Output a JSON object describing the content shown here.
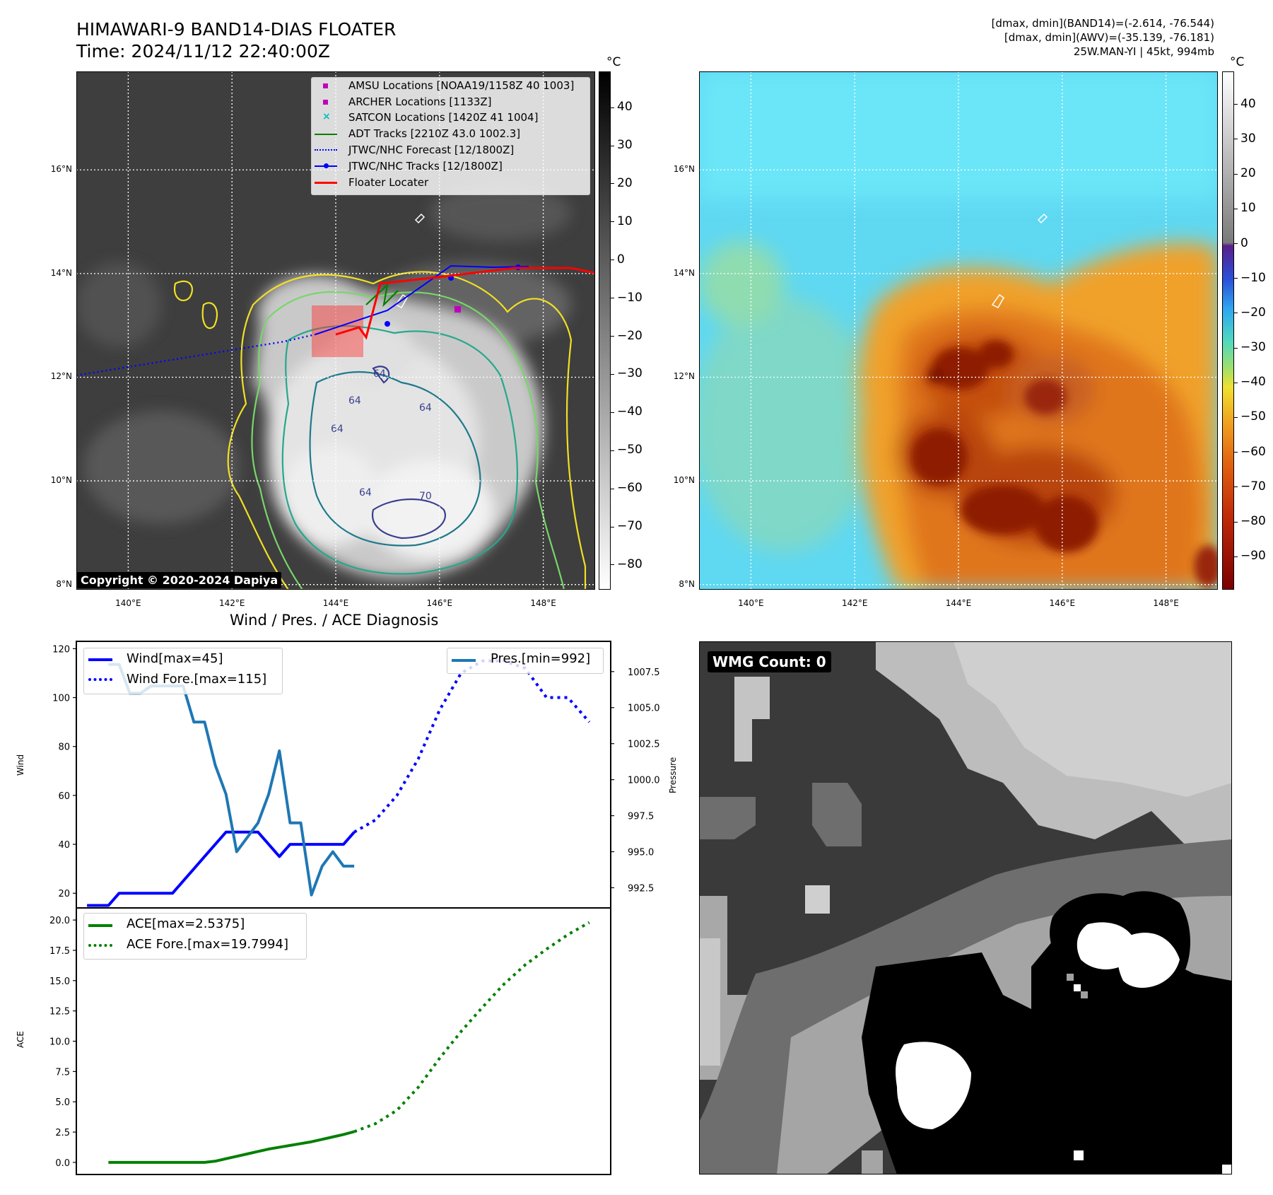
{
  "header": {
    "title_line1": "HIMAWARI-9 BAND14-DIAS FLOATER",
    "title_line2": "Time: 2024/11/12 22:40:00Z",
    "info_line1": "[dmax, dmin](BAND14)=(-2.614, -76.544)",
    "info_line2": "[dmax, dmin](AWV)=(-35.139, -76.181)",
    "info_line3": "25W.MAN-YI | 45kt, 994mb"
  },
  "map_axes": {
    "lat_labels": [
      "16°N",
      "14°N",
      "12°N",
      "10°N",
      "8°N"
    ],
    "lon_labels": [
      "140°E",
      "142°E",
      "144°E",
      "146°E",
      "148°E"
    ],
    "lon_range": [
      139,
      149
    ],
    "lat_range": [
      7.9,
      17.9
    ]
  },
  "ir_panel": {
    "colorbar_unit": "°C",
    "colorbar_ticks": [
      "40",
      "30",
      "20",
      "10",
      "0",
      "−10",
      "−20",
      "−30",
      "−40",
      "−50",
      "−60",
      "−70",
      "−80"
    ],
    "copyright": "Copyright © 2020-2024 Dapiya",
    "legend": [
      {
        "label": "AMSU Locations [NOAA19/1158Z 40 1003]",
        "color": "#bf00bf",
        "kind": "square"
      },
      {
        "label": "ARCHER Locations [1133Z]",
        "color": "#bf00bf",
        "kind": "square"
      },
      {
        "label": "SATCON Locations [1420Z 41 1004]",
        "color": "#00bfbf",
        "kind": "x"
      },
      {
        "label": "ADT Tracks [2210Z 43.0 1002.3]",
        "color": "#008000",
        "kind": "line"
      },
      {
        "label": "JTWC/NHC Forecast [12/1800Z]",
        "color": "#0000ff",
        "kind": "dotted"
      },
      {
        "label": "JTWC/NHC Tracks [12/1800Z]",
        "color": "#0000ff",
        "kind": "line-dot"
      },
      {
        "label": "Floater Locater",
        "color": "#ff0000",
        "kind": "line"
      }
    ],
    "contour_labels": [
      "64",
      "64",
      "64",
      "64",
      "64",
      "70"
    ]
  },
  "awv_panel": {
    "colorbar_unit": "°C",
    "colorbar_ticks": [
      "40",
      "30",
      "20",
      "10",
      "0",
      "−10",
      "−20",
      "−30",
      "−40",
      "−50",
      "−60",
      "−70",
      "−80",
      "−90"
    ]
  },
  "chart_data": [
    {
      "type": "line",
      "title": "Wind / Pres. / ACE Diagnosis",
      "ylabel": "Wind",
      "ylim": [
        14,
        123
      ],
      "yticks": [
        "120",
        "100",
        "80",
        "60",
        "40",
        "20"
      ],
      "y2label": "Pressure",
      "y2lim": [
        991.1,
        1009.6
      ],
      "y2ticks": [
        "1007.5",
        "1005.0",
        "1002.5",
        "1000.0",
        "997.5",
        "995.0",
        "992.5"
      ],
      "legend_left": [
        "Wind[max=45]",
        "Wind Fore.[max=115]"
      ],
      "legend_right": [
        "Pres.[min=992]"
      ],
      "series": [
        {
          "name": "Wind",
          "color": "#0000ff",
          "x": [
            0,
            1,
            2,
            3,
            4,
            5,
            6,
            7,
            8,
            9,
            10,
            11,
            12,
            13,
            14,
            15,
            16,
            17,
            18,
            19,
            20,
            21,
            22,
            23,
            24,
            25
          ],
          "values": [
            15,
            15,
            15,
            20,
            20,
            20,
            20,
            20,
            20,
            25,
            30,
            35,
            40,
            45,
            45,
            45,
            45,
            40,
            35,
            40,
            40,
            40,
            40,
            40,
            40,
            45
          ]
        },
        {
          "name": "Wind Fore.",
          "color": "#0000ff",
          "style": "dotted",
          "x": [
            25,
            27,
            29,
            31,
            33,
            35,
            37,
            39,
            41,
            43,
            45,
            47
          ],
          "values": [
            45,
            50,
            60,
            75,
            95,
            110,
            115,
            115,
            112,
            100,
            100,
            90
          ]
        },
        {
          "name": "Pres.",
          "color": "#1f77b4",
          "axis": "right",
          "x": [
            2,
            3,
            4,
            5,
            6,
            7,
            8,
            9,
            10,
            11,
            12,
            13,
            14,
            15,
            16,
            17,
            18,
            19,
            20,
            21,
            22,
            23,
            24,
            25
          ],
          "values": [
            1008,
            1008,
            1006,
            1006,
            1006.5,
            1006.5,
            1006.5,
            1006.5,
            1004,
            1004,
            1001,
            999,
            995,
            996,
            997,
            999,
            1002,
            997,
            997,
            992,
            994,
            995,
            994,
            994
          ]
        }
      ]
    },
    {
      "type": "line",
      "ylabel": "ACE",
      "ylim": [
        -1,
        21
      ],
      "yticks": [
        "20.0",
        "17.5",
        "15.0",
        "12.5",
        "10.0",
        "7.5",
        "5.0",
        "2.5",
        "0.0"
      ],
      "legend": [
        "ACE[max=2.5375]",
        "ACE Fore.[max=19.7994]"
      ],
      "series": [
        {
          "name": "ACE",
          "color": "#008000",
          "x": [
            2,
            4,
            6,
            8,
            10,
            11,
            12,
            13,
            14,
            15,
            16,
            17,
            18,
            19,
            20,
            21,
            22,
            23,
            24,
            25
          ],
          "values": [
            0,
            0,
            0,
            0,
            0,
            0,
            0.1,
            0.3,
            0.5,
            0.7,
            0.9,
            1.1,
            1.25,
            1.4,
            1.55,
            1.7,
            1.9,
            2.1,
            2.3,
            2.5375
          ]
        },
        {
          "name": "ACE Fore.",
          "color": "#008000",
          "style": "dotted",
          "x": [
            25,
            27,
            29,
            31,
            33,
            35,
            37,
            39,
            41,
            43,
            45,
            47
          ],
          "values": [
            2.5375,
            3.2,
            4.3,
            6.2,
            8.6,
            10.8,
            12.8,
            14.7,
            16.3,
            17.6,
            18.8,
            19.7994
          ]
        }
      ]
    }
  ],
  "wmg_panel": {
    "count_label": "WMG Count: 0"
  }
}
